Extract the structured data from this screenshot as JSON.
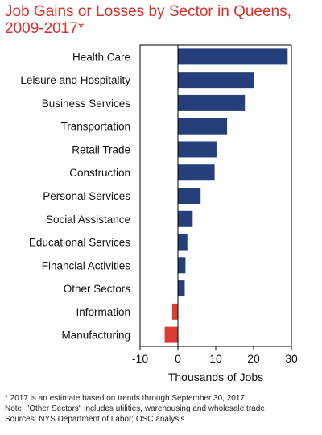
{
  "chart_data": {
    "type": "bar",
    "orientation": "horizontal",
    "title": "Job Gains or Losses by Sector in Queens, 2009-2017*",
    "xlabel": "Thousands of Jobs",
    "ylabel": "",
    "xlim": [
      -10,
      30
    ],
    "xticks": [
      "-10",
      "0",
      "10",
      "20",
      "30"
    ],
    "grid": false,
    "legend": "none",
    "categories": [
      "Health Care",
      "Leisure and Hospitality",
      "Business Services",
      "Transportation",
      "Retail Trade",
      "Construction",
      "Personal Services",
      "Social Assistance",
      "Educational Services",
      "Financial Activities",
      "Other Sectors",
      "Information",
      "Manufacturing"
    ],
    "values": [
      29.0,
      20.2,
      17.7,
      13.0,
      10.2,
      9.7,
      6.0,
      3.9,
      2.5,
      2.0,
      1.8,
      -1.5,
      -3.5
    ],
    "colors": {
      "positive": "#243f79",
      "negative": "#d93d35"
    }
  },
  "footnotes": [
    "* 2017 is an estimate based on trends through September 30, 2017.",
    "Note: \"Other Sectors\" includes utilities, warehousing and wholesale trade.",
    "Sources: NYS Department of Labor; OSC analysis"
  ]
}
